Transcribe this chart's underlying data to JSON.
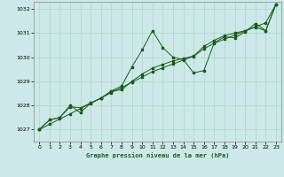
{
  "title": "Graphe pression niveau de la mer (hPa)",
  "bg_color": "#cce8e8",
  "grid_color": "#b0d4cc",
  "line_color": "#1a5c1a",
  "xlim": [
    -0.5,
    23.5
  ],
  "ylim": [
    1026.5,
    1032.3
  ],
  "yticks": [
    1027,
    1028,
    1029,
    1030,
    1031,
    1032
  ],
  "xticks": [
    0,
    1,
    2,
    3,
    4,
    5,
    6,
    7,
    8,
    9,
    10,
    11,
    12,
    13,
    14,
    15,
    16,
    17,
    18,
    19,
    20,
    21,
    22,
    23
  ],
  "raw_series": [
    1027.0,
    1027.4,
    1027.5,
    1028.0,
    1027.7,
    1028.1,
    1028.3,
    1028.6,
    1028.8,
    1029.6,
    1030.3,
    1031.1,
    1030.4,
    1030.0,
    1029.9,
    1029.35,
    1029.45,
    1030.6,
    1030.85,
    1030.8,
    1031.05,
    1031.4,
    1031.1,
    1032.2
  ],
  "smooth_series": [
    1027.0,
    1027.4,
    1027.5,
    1027.95,
    1027.9,
    1028.1,
    1028.3,
    1028.6,
    1028.65,
    1029.0,
    1029.3,
    1029.55,
    1029.7,
    1029.85,
    1029.95,
    1030.05,
    1030.45,
    1030.7,
    1030.9,
    1031.0,
    1031.1,
    1031.25,
    1031.1,
    1032.2
  ],
  "trend_series": [
    1027.0,
    1027.22,
    1027.44,
    1027.65,
    1027.87,
    1028.09,
    1028.31,
    1028.53,
    1028.74,
    1028.96,
    1029.18,
    1029.4,
    1029.56,
    1029.72,
    1029.88,
    1030.04,
    1030.35,
    1030.58,
    1030.75,
    1030.92,
    1031.09,
    1031.26,
    1031.43,
    1032.2
  ]
}
